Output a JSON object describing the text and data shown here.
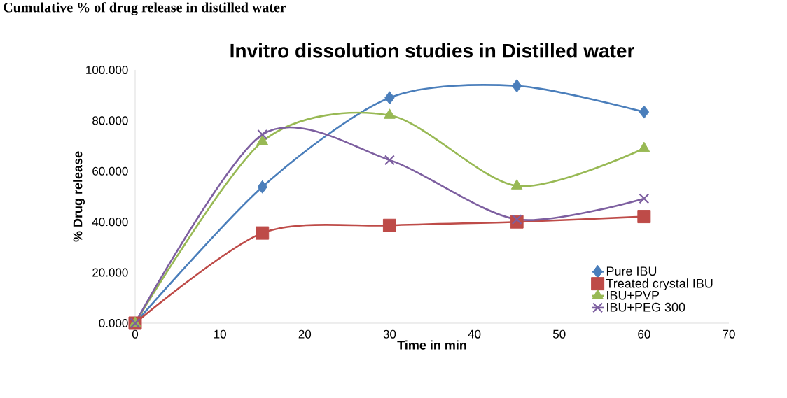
{
  "chart_data": {
    "type": "line",
    "title": "Invitro dissolution studies in Distilled water",
    "xlabel": "Time in min",
    "ylabel": "% Drug release",
    "annotations": [
      "Cumulative % of drug release in distilled water"
    ],
    "x": [
      0,
      15,
      30,
      45,
      60
    ],
    "series": [
      {
        "name": "Pure IBU",
        "color": "#4a7ebb",
        "marker": "diamond",
        "values": [
          0,
          53.8,
          89.0,
          93.7,
          83.4
        ]
      },
      {
        "name": "Treated crystal IBU",
        "color": "#be4b48",
        "marker": "square",
        "values": [
          0,
          35.6,
          38.6,
          40.0,
          42.1
        ]
      },
      {
        "name": "IBU+PVP",
        "color": "#98b954",
        "marker": "triangle",
        "values": [
          0,
          71.7,
          82.1,
          54.2,
          69.0
        ]
      },
      {
        "name": "IBU+PEG 300",
        "color": "#7d5fa0",
        "marker": "cross",
        "values": [
          0,
          74.5,
          64.4,
          41.0,
          49.2
        ]
      }
    ],
    "xlim": [
      0,
      70
    ],
    "xticks": [
      0,
      10,
      20,
      30,
      40,
      50,
      60,
      70
    ],
    "ylim": [
      0,
      100
    ],
    "yticks": [
      {
        "value": 0,
        "label": "0.000"
      },
      {
        "value": 20,
        "label": "20.000"
      },
      {
        "value": 40,
        "label": "40.000"
      },
      {
        "value": 60,
        "label": "60.000"
      },
      {
        "value": 80,
        "label": "80.000"
      },
      {
        "value": 100,
        "label": "100.000"
      }
    ],
    "grid": false,
    "legend": "bottom right",
    "line_style": "solid"
  }
}
